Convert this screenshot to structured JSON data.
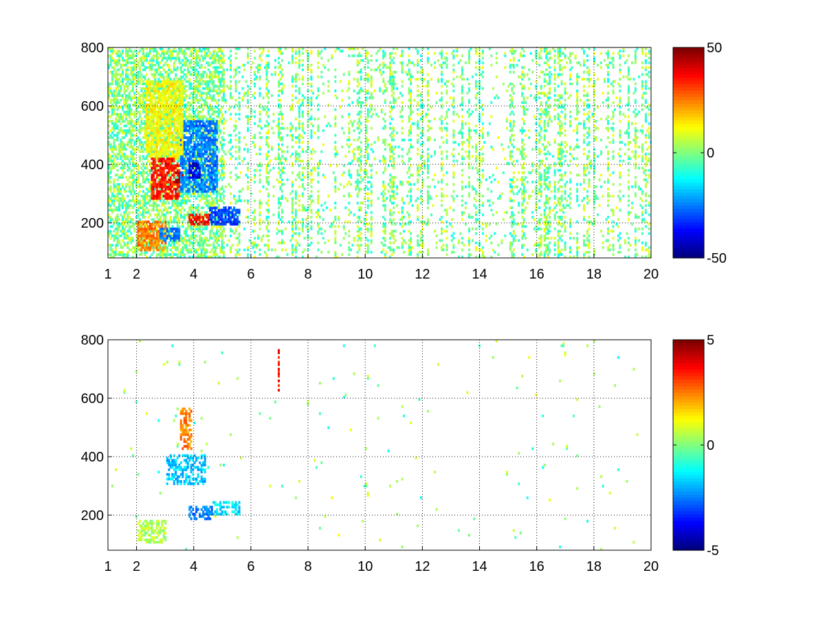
{
  "chart_data": [
    {
      "type": "heatmap",
      "title": "",
      "xlabel": "",
      "ylabel": "",
      "xlim": [
        1,
        20
      ],
      "ylim": [
        80,
        800
      ],
      "x_ticks": [
        1,
        2,
        4,
        6,
        8,
        10,
        12,
        14,
        16,
        18,
        20
      ],
      "x_tick_labels": [
        "1",
        "2",
        "4",
        "6",
        "8",
        "10",
        "12",
        "14",
        "16",
        "18",
        "20"
      ],
      "y_ticks": [
        200,
        400,
        600,
        800
      ],
      "y_tick_labels": [
        "200",
        "400",
        "600",
        "800"
      ],
      "grid": true,
      "colormap": "jet",
      "colorbar": {
        "min": -50,
        "max": 50,
        "ticks": [
          50,
          0,
          -50
        ],
        "tick_labels": [
          "50",
          "0",
          "-50"
        ]
      },
      "features": [
        {
          "x": [
            2.0,
            3.0
          ],
          "y": [
            100,
            200
          ],
          "value": 25
        },
        {
          "x": [
            2.5,
            3.5
          ],
          "y": [
            280,
            420
          ],
          "value": 35
        },
        {
          "x": [
            3.3,
            3.6
          ],
          "y": [
            330,
            370
          ],
          "value": 45
        },
        {
          "x": [
            3.5,
            4.8
          ],
          "y": [
            300,
            550
          ],
          "value": -25
        },
        {
          "x": [
            3.8,
            4.2
          ],
          "y": [
            350,
            400
          ],
          "value": -40
        },
        {
          "x": [
            3.8,
            4.6
          ],
          "y": [
            190,
            230
          ],
          "value": 35
        },
        {
          "x": [
            4.5,
            5.6
          ],
          "y": [
            190,
            250
          ],
          "value": -30
        },
        {
          "x": [
            2.3,
            3.6
          ],
          "y": [
            420,
            680
          ],
          "value": 12
        },
        {
          "x": [
            2.8,
            3.5
          ],
          "y": [
            130,
            180
          ],
          "value": -25
        }
      ],
      "noise_amplitude": 12
    },
    {
      "type": "heatmap",
      "title": "",
      "xlabel": "",
      "ylabel": "",
      "xlim": [
        1,
        20
      ],
      "ylim": [
        80,
        800
      ],
      "x_ticks": [
        1,
        2,
        4,
        6,
        8,
        10,
        12,
        14,
        16,
        18,
        20
      ],
      "x_tick_labels": [
        "1",
        "2",
        "4",
        "6",
        "8",
        "10",
        "12",
        "14",
        "16",
        "18",
        "20"
      ],
      "y_ticks": [
        200,
        400,
        600,
        800
      ],
      "y_tick_labels": [
        "200",
        "400",
        "600",
        "800"
      ],
      "grid": true,
      "colormap": "jet",
      "colorbar": {
        "min": -5,
        "max": 5,
        "ticks": [
          5,
          0,
          -5
        ],
        "tick_labels": [
          "5",
          "0",
          "-5"
        ]
      },
      "features": [
        {
          "x": [
            3.0,
            4.4
          ],
          "y": [
            300,
            400
          ],
          "value": -1.8
        },
        {
          "x": [
            3.8,
            4.6
          ],
          "y": [
            180,
            230
          ],
          "value": -2.5
        },
        {
          "x": [
            4.6,
            5.6
          ],
          "y": [
            200,
            240
          ],
          "value": -1.5
        },
        {
          "x": [
            3.5,
            3.9
          ],
          "y": [
            420,
            560
          ],
          "value": 2.5
        },
        {
          "x": [
            2.0,
            3.0
          ],
          "y": [
            100,
            180
          ],
          "value": 0.5
        },
        {
          "x": [
            6.9,
            6.95
          ],
          "y": [
            610,
            770
          ],
          "value": 3.5
        }
      ],
      "noise_amplitude": 1.2
    }
  ]
}
